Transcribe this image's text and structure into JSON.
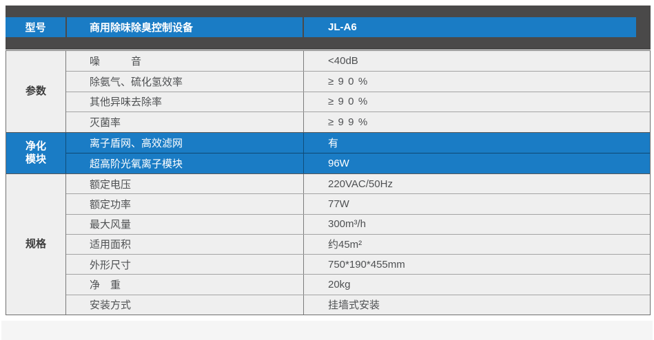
{
  "colors": {
    "accent_blue": "#1a7cc5",
    "header_band": "#4a4949",
    "row_background": "#efefef",
    "footer_background": "#f5f5f5"
  },
  "header": {
    "model_label": "型号",
    "product_name": "商用除味除臭控制设备",
    "model_value": "JL-A6"
  },
  "table": {
    "sections": [
      {
        "label": "参数",
        "rows": [
          {
            "label": "噪　　　音",
            "value": "<40dB"
          },
          {
            "label": "除氨气、硫化氢效率",
            "value": "≥90%"
          },
          {
            "label": "其他异味去除率",
            "value": "≥90%"
          },
          {
            "label": "灭菌率",
            "value": "≥99%"
          }
        ]
      },
      {
        "label": "净化\n模块",
        "rows": [
          {
            "label": "离子盾网、高效滤网",
            "value": "有"
          },
          {
            "label": "超高阶光氧离子模块",
            "value": "96W"
          }
        ]
      },
      {
        "label": "规格",
        "rows": [
          {
            "label": "额定电压",
            "value": "220VAC/50Hz"
          },
          {
            "label": "额定功率",
            "value": "77W"
          },
          {
            "label": "最大风量",
            "value": "300m³/h"
          },
          {
            "label": "适用面积",
            "value": "约45m²"
          },
          {
            "label": "外形尺寸",
            "value": "750*190*455mm"
          },
          {
            "label": "净　重",
            "value": "20kg"
          },
          {
            "label": "安装方式",
            "value": "挂墙式安装"
          }
        ]
      }
    ]
  }
}
